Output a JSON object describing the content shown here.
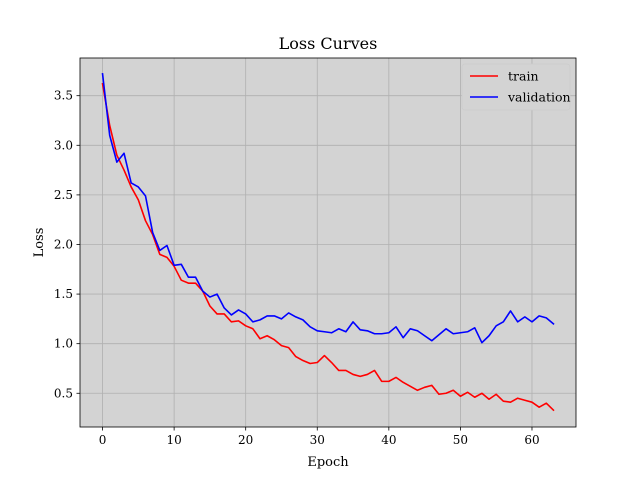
{
  "chart_data": {
    "type": "line",
    "title": "Loss Curves",
    "xlabel": "Epoch",
    "ylabel": "Loss",
    "xlim": [
      -3.15,
      66.15
    ],
    "ylim": [
      0.16,
      3.88
    ],
    "xticks": [
      0,
      10,
      20,
      30,
      40,
      50,
      60
    ],
    "yticks": [
      0.5,
      1.0,
      1.5,
      2.0,
      2.5,
      3.0,
      3.5
    ],
    "xtick_labels": [
      "0",
      "10",
      "20",
      "30",
      "40",
      "50",
      "60"
    ],
    "ytick_labels": [
      "0.5",
      "1.0",
      "1.5",
      "2.0",
      "2.5",
      "3.0",
      "3.5"
    ],
    "grid": true,
    "background_color": "#d3d3d3",
    "grid_color": "#b0b0b0",
    "legend_position": "top-right",
    "x": [
      0,
      1,
      2,
      3,
      4,
      5,
      6,
      7,
      8,
      9,
      10,
      11,
      12,
      13,
      14,
      15,
      16,
      17,
      18,
      19,
      20,
      21,
      22,
      23,
      24,
      25,
      26,
      27,
      28,
      29,
      30,
      31,
      32,
      33,
      34,
      35,
      36,
      37,
      38,
      39,
      40,
      41,
      42,
      43,
      44,
      45,
      46,
      47,
      48,
      49,
      50,
      51,
      52,
      53,
      54,
      55,
      56,
      57,
      58,
      59,
      60,
      61,
      62,
      63
    ],
    "series": [
      {
        "name": "train",
        "color": "#ff0000",
        "values": [
          3.62,
          3.2,
          2.9,
          2.75,
          2.58,
          2.45,
          2.24,
          2.1,
          1.9,
          1.87,
          1.78,
          1.64,
          1.61,
          1.61,
          1.53,
          1.38,
          1.3,
          1.3,
          1.22,
          1.23,
          1.18,
          1.15,
          1.05,
          1.08,
          1.04,
          0.98,
          0.96,
          0.87,
          0.83,
          0.8,
          0.81,
          0.88,
          0.81,
          0.73,
          0.73,
          0.69,
          0.67,
          0.69,
          0.73,
          0.62,
          0.62,
          0.66,
          0.61,
          0.57,
          0.53,
          0.56,
          0.58,
          0.49,
          0.5,
          0.53,
          0.47,
          0.51,
          0.46,
          0.5,
          0.44,
          0.49,
          0.42,
          0.41,
          0.45,
          0.43,
          0.41,
          0.36,
          0.4,
          0.33
        ]
      },
      {
        "name": "validation",
        "color": "#0000ff",
        "values": [
          3.72,
          3.1,
          2.83,
          2.92,
          2.62,
          2.58,
          2.49,
          2.12,
          1.94,
          1.99,
          1.79,
          1.8,
          1.67,
          1.67,
          1.53,
          1.47,
          1.5,
          1.36,
          1.29,
          1.34,
          1.3,
          1.22,
          1.24,
          1.28,
          1.28,
          1.25,
          1.31,
          1.27,
          1.24,
          1.17,
          1.13,
          1.12,
          1.11,
          1.15,
          1.12,
          1.22,
          1.14,
          1.13,
          1.1,
          1.1,
          1.11,
          1.17,
          1.06,
          1.15,
          1.13,
          1.08,
          1.03,
          1.09,
          1.15,
          1.1,
          1.11,
          1.12,
          1.16,
          1.01,
          1.08,
          1.18,
          1.22,
          1.33,
          1.22,
          1.27,
          1.22,
          1.28,
          1.26,
          1.2
        ]
      }
    ]
  }
}
